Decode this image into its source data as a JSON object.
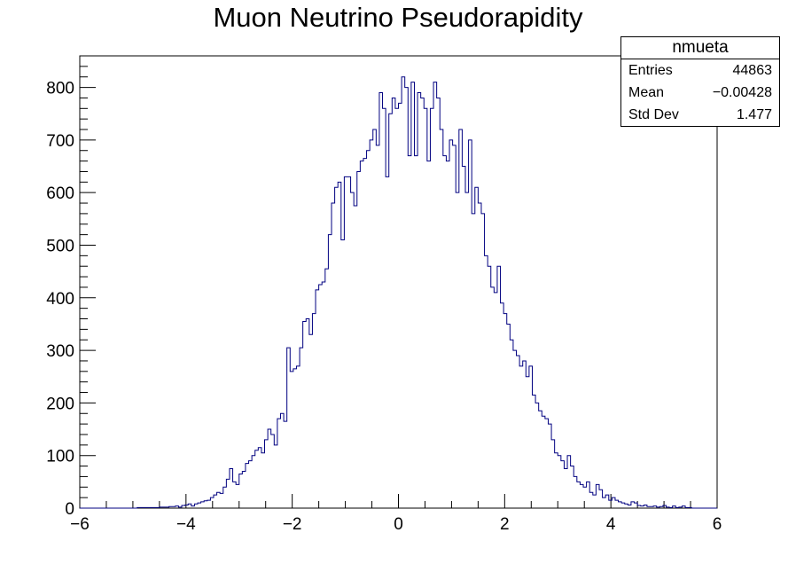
{
  "chart_data": {
    "type": "bar",
    "title": "Muon Neutrino Pseudorapidity",
    "xlabel": "",
    "ylabel": "",
    "xlim": [
      -6,
      6
    ],
    "ylim": [
      0,
      860
    ],
    "x_ticks": [
      -6,
      -4,
      -2,
      0,
      2,
      4,
      6
    ],
    "y_ticks": [
      0,
      100,
      200,
      300,
      400,
      500,
      600,
      700,
      800
    ],
    "x_tick_labels": [
      "−6",
      "−4",
      "−2",
      "0",
      "2",
      "4",
      "6"
    ],
    "y_tick_labels": [
      "0",
      "100",
      "200",
      "300",
      "400",
      "500",
      "600",
      "700",
      "800"
    ],
    "line_color": "#000080",
    "bins": {
      "count": 200,
      "min": -6,
      "max": 6
    },
    "series": [
      {
        "values": [
          0,
          0,
          0,
          0,
          0,
          0,
          0,
          0,
          0,
          0,
          0,
          0,
          0,
          0,
          0,
          0,
          0,
          0,
          1,
          1,
          1,
          1,
          1,
          1,
          1,
          2,
          2,
          2,
          3,
          3,
          4,
          2,
          5,
          6,
          8,
          4,
          8,
          10,
          12,
          14,
          15,
          20,
          25,
          30,
          28,
          40,
          55,
          75,
          50,
          45,
          65,
          70,
          85,
          90,
          100,
          110,
          115,
          105,
          130,
          150,
          140,
          120,
          170,
          180,
          165,
          305,
          260,
          265,
          270,
          305,
          355,
          360,
          330,
          370,
          415,
          425,
          430,
          455,
          520,
          580,
          610,
          620,
          510,
          630,
          630,
          600,
          575,
          640,
          660,
          665,
          680,
          700,
          720,
          690,
          790,
          760,
          630,
          750,
          780,
          760,
          770,
          820,
          800,
          670,
          810,
          670,
          790,
          780,
          760,
          660,
          760,
          810,
          780,
          720,
          670,
          660,
          700,
          690,
          600,
          720,
          650,
          600,
          700,
          560,
          610,
          580,
          560,
          480,
          460,
          420,
          410,
          460,
          390,
          370,
          350,
          320,
          300,
          290,
          270,
          280,
          250,
          270,
          215,
          200,
          185,
          175,
          170,
          160,
          130,
          105,
          100,
          90,
          75,
          100,
          80,
          60,
          50,
          45,
          40,
          50,
          30,
          25,
          45,
          35,
          20,
          25,
          15,
          20,
          15,
          12,
          10,
          8,
          6,
          12,
          10,
          5,
          4,
          6,
          3,
          3,
          4,
          2,
          3,
          5,
          2,
          1,
          4,
          1,
          2,
          4,
          1,
          1,
          0,
          0,
          0,
          0,
          0,
          0,
          0,
          0
        ]
      }
    ],
    "stats": {
      "name": "nmueta",
      "rows": [
        {
          "label": "Entries",
          "value": "44863"
        },
        {
          "label": "Mean",
          "value": "−0.00428"
        },
        {
          "label": "Std Dev",
          "value": "1.477"
        }
      ]
    }
  }
}
